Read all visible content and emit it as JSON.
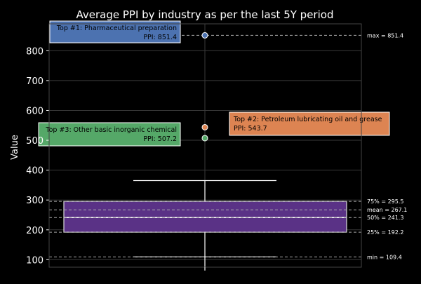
{
  "chart_data": {
    "type": "box",
    "title": "Average PPI by industry as per the last 5Y period",
    "ylabel": "Value",
    "xlabel": "",
    "ylim": [
      75,
      890
    ],
    "yticks": [
      100,
      200,
      300,
      400,
      500,
      600,
      700,
      800
    ],
    "grid": true,
    "box": {
      "min": 109.4,
      "q1": 192.2,
      "median": 241.3,
      "mean": 267.1,
      "q3": 295.5,
      "max": 851.4,
      "upper_whisker": 365,
      "fill": "#5a3286"
    },
    "stat_lines": [
      {
        "key": "max",
        "label": "max =  851.4",
        "value": 851.4
      },
      {
        "key": "q3",
        "label": "75% =  295.5",
        "value": 295.5
      },
      {
        "key": "mean",
        "label": "mean =  267.1",
        "value": 267.1
      },
      {
        "key": "median",
        "label": "50% =  241.3",
        "value": 241.3
      },
      {
        "key": "q1",
        "label": "25% =  192.2",
        "value": 192.2
      },
      {
        "key": "min",
        "label": "min =  109.4",
        "value": 109.4
      }
    ],
    "top_points": [
      {
        "rank": 1,
        "label": "Top #1: Pharmaceutical preparation",
        "ppi_label": "PPI: 851.4",
        "value": 851.4,
        "color": "#4c72b0",
        "side": "left"
      },
      {
        "rank": 2,
        "label": "Top #2: Petroleum lubricating oil and grease",
        "ppi_label": "PPI: 543.7",
        "value": 543.7,
        "color": "#dd8452",
        "side": "right"
      },
      {
        "rank": 3,
        "label": "Top #3: Other basic inorganic chemical",
        "ppi_label": "PPI: 507.2",
        "value": 507.2,
        "color": "#55a868",
        "side": "left"
      }
    ]
  }
}
